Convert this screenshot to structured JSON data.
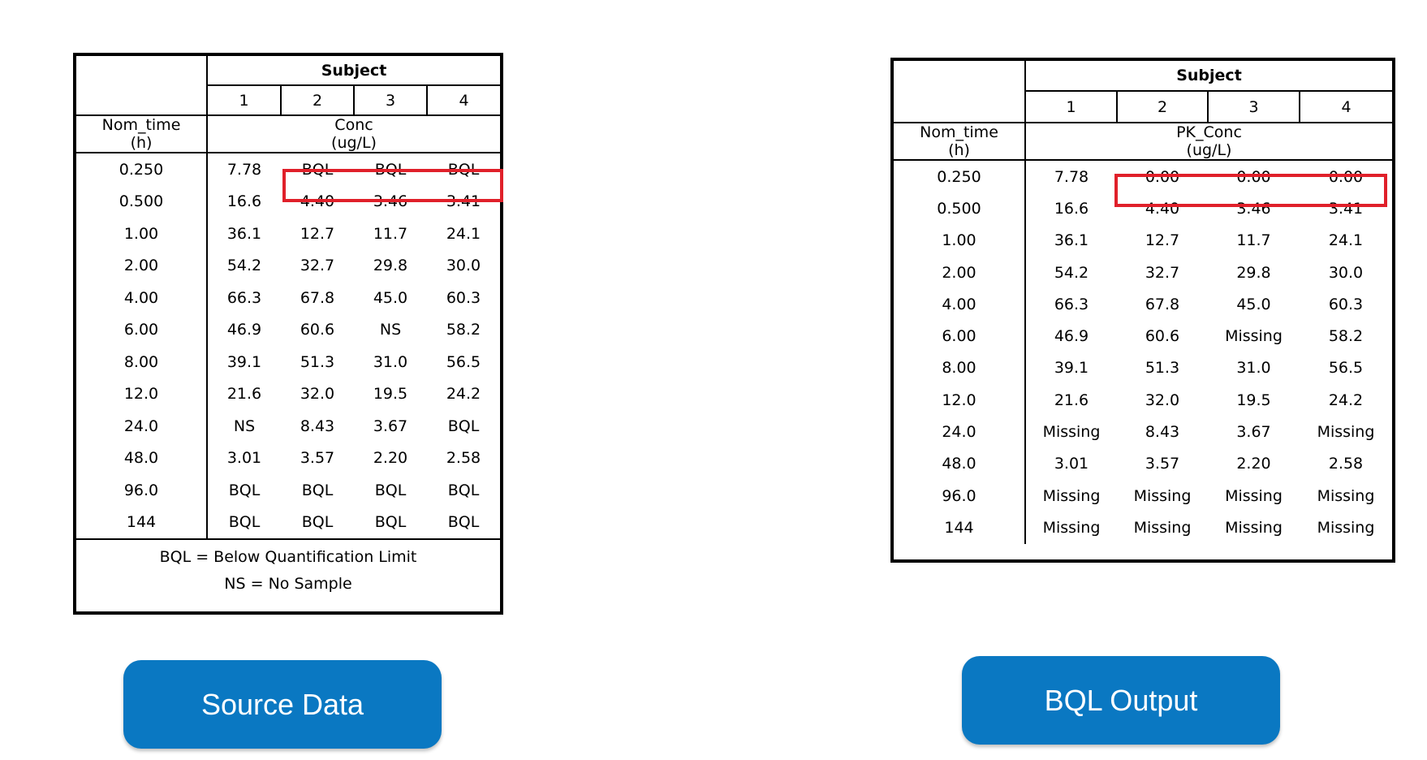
{
  "source": {
    "subject_header": "Subject",
    "subject_ids": [
      "1",
      "2",
      "3",
      "4"
    ],
    "time_header_line1": "Nom_time",
    "time_header_line2": "(h)",
    "conc_header_line1": "Conc",
    "conc_header_line2": "(ug/L)",
    "rows": [
      {
        "time": "0.250",
        "values": [
          "7.78",
          "BQL",
          "BQL",
          "BQL"
        ]
      },
      {
        "time": "0.500",
        "values": [
          "16.6",
          "4.40",
          "3.46",
          "3.41"
        ]
      },
      {
        "time": "1.00",
        "values": [
          "36.1",
          "12.7",
          "11.7",
          "24.1"
        ]
      },
      {
        "time": "2.00",
        "values": [
          "54.2",
          "32.7",
          "29.8",
          "30.0"
        ]
      },
      {
        "time": "4.00",
        "values": [
          "66.3",
          "67.8",
          "45.0",
          "60.3"
        ]
      },
      {
        "time": "6.00",
        "values": [
          "46.9",
          "60.6",
          "NS",
          "58.2"
        ]
      },
      {
        "time": "8.00",
        "values": [
          "39.1",
          "51.3",
          "31.0",
          "56.5"
        ]
      },
      {
        "time": "12.0",
        "values": [
          "21.6",
          "32.0",
          "19.5",
          "24.2"
        ]
      },
      {
        "time": "24.0",
        "values": [
          "NS",
          "8.43",
          "3.67",
          "BQL"
        ]
      },
      {
        "time": "48.0",
        "values": [
          "3.01",
          "3.57",
          "2.20",
          "2.58"
        ]
      },
      {
        "time": "96.0",
        "values": [
          "BQL",
          "BQL",
          "BQL",
          "BQL"
        ]
      },
      {
        "time": "144",
        "values": [
          "BQL",
          "BQL",
          "BQL",
          "BQL"
        ]
      }
    ],
    "legend": [
      "BQL = Below Quantification Limit",
      "NS = No Sample"
    ]
  },
  "output": {
    "subject_header": "Subject",
    "subject_ids": [
      "1",
      "2",
      "3",
      "4"
    ],
    "time_header_line1": "Nom_time",
    "time_header_line2": "(h)",
    "conc_header_line1": "PK_Conc",
    "conc_header_line2": "(ug/L)",
    "rows": [
      {
        "time": "0.250",
        "values": [
          "7.78",
          "0.00",
          "0.00",
          "0.00"
        ]
      },
      {
        "time": "0.500",
        "values": [
          "16.6",
          "4.40",
          "3.46",
          "3.41"
        ]
      },
      {
        "time": "1.00",
        "values": [
          "36.1",
          "12.7",
          "11.7",
          "24.1"
        ]
      },
      {
        "time": "2.00",
        "values": [
          "54.2",
          "32.7",
          "29.8",
          "30.0"
        ]
      },
      {
        "time": "4.00",
        "values": [
          "66.3",
          "67.8",
          "45.0",
          "60.3"
        ]
      },
      {
        "time": "6.00",
        "values": [
          "46.9",
          "60.6",
          "Missing",
          "58.2"
        ]
      },
      {
        "time": "8.00",
        "values": [
          "39.1",
          "51.3",
          "31.0",
          "56.5"
        ]
      },
      {
        "time": "12.0",
        "values": [
          "21.6",
          "32.0",
          "19.5",
          "24.2"
        ]
      },
      {
        "time": "24.0",
        "values": [
          "Missing",
          "8.43",
          "3.67",
          "Missing"
        ]
      },
      {
        "time": "48.0",
        "values": [
          "3.01",
          "3.57",
          "2.20",
          "2.58"
        ]
      },
      {
        "time": "96.0",
        "values": [
          "Missing",
          "Missing",
          "Missing",
          "Missing"
        ]
      },
      {
        "time": "144",
        "values": [
          "Missing",
          "Missing",
          "Missing",
          "Missing"
        ]
      }
    ]
  },
  "buttons": {
    "source_label": "Source Data",
    "output_label": "BQL Output",
    "color": "#0a78c2"
  },
  "highlight_color": "#e0202a"
}
